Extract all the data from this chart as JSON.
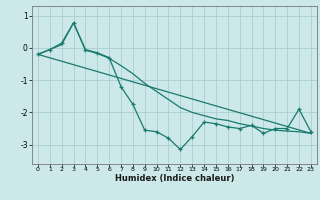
{
  "title": "",
  "xlabel": "Humidex (Indice chaleur)",
  "background_color": "#cce8e8",
  "line_color": "#1a7a6e",
  "grid_color": "#aacfcf",
  "xlim": [
    -0.5,
    23.5
  ],
  "ylim": [
    -3.6,
    1.3
  ],
  "yticks": [
    1,
    0,
    -1,
    -2,
    -3
  ],
  "xticks": [
    0,
    1,
    2,
    3,
    4,
    5,
    6,
    7,
    8,
    9,
    10,
    11,
    12,
    13,
    14,
    15,
    16,
    17,
    18,
    19,
    20,
    21,
    22,
    23
  ],
  "line1_x": [
    0,
    1,
    2,
    3,
    4,
    5,
    6,
    7,
    8,
    9,
    10,
    11,
    12,
    13,
    14,
    15,
    16,
    17,
    18,
    19,
    20,
    21,
    22,
    23
  ],
  "line1_y": [
    -0.2,
    -0.05,
    0.15,
    0.78,
    -0.05,
    -0.15,
    -0.3,
    -1.2,
    -1.75,
    -2.55,
    -2.6,
    -2.8,
    -3.15,
    -2.75,
    -2.3,
    -2.35,
    -2.45,
    -2.5,
    -2.4,
    -2.65,
    -2.5,
    -2.5,
    -1.9,
    -2.6
  ],
  "line2_x": [
    0,
    1,
    2,
    3,
    4,
    5,
    6,
    7,
    8,
    9,
    10,
    11,
    12,
    13,
    14,
    15,
    16,
    17,
    18,
    19,
    20,
    21,
    22,
    23
  ],
  "line2_y": [
    -0.2,
    -0.05,
    0.1,
    0.78,
    -0.07,
    -0.17,
    -0.32,
    -0.55,
    -0.8,
    -1.1,
    -1.35,
    -1.6,
    -1.85,
    -2.0,
    -2.1,
    -2.2,
    -2.25,
    -2.35,
    -2.42,
    -2.5,
    -2.55,
    -2.58,
    -2.6,
    -2.65
  ],
  "line3_x": [
    0,
    23
  ],
  "line3_y": [
    -0.2,
    -2.65
  ]
}
